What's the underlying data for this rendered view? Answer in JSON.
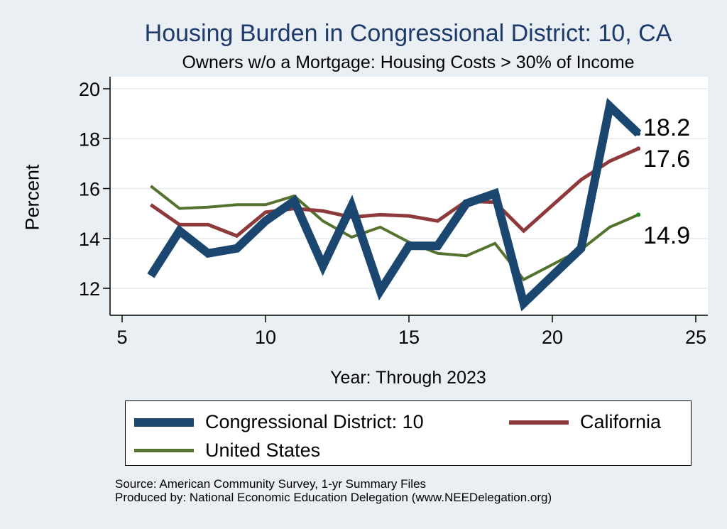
{
  "chart_data": {
    "type": "line",
    "title": "Housing Burden in Congressional District:  10, CA",
    "subtitle": "Owners w/o a Mortgage: Housing Costs > 30% of Income",
    "xlabel": "Year: Through 2023",
    "ylabel": "Percent",
    "xlim": [
      5,
      25
    ],
    "ylim": [
      11,
      20.5
    ],
    "xticks": [
      5,
      10,
      15,
      20,
      25
    ],
    "yticks": [
      12,
      14,
      16,
      18,
      20
    ],
    "grid": true,
    "series": [
      {
        "name": "Congressional District:  10",
        "color": "#1a4670",
        "x": [
          6,
          7,
          8,
          9,
          10,
          11,
          12,
          13,
          14,
          15,
          16,
          17,
          18,
          19,
          21,
          22,
          23
        ],
        "values": [
          12.5,
          14.3,
          13.4,
          13.6,
          14.7,
          15.5,
          12.9,
          15.3,
          11.9,
          13.7,
          13.7,
          15.4,
          15.8,
          11.4,
          13.6,
          19.3,
          18.2
        ],
        "end_label": "18.2"
      },
      {
        "name": "California",
        "color": "#8e3a3d",
        "x": [
          6,
          7,
          8,
          9,
          10,
          11,
          12,
          13,
          14,
          15,
          16,
          17,
          18,
          19,
          21,
          22,
          23
        ],
        "values": [
          15.35,
          14.55,
          14.55,
          14.1,
          15.05,
          15.2,
          15.1,
          14.85,
          14.95,
          14.9,
          14.7,
          15.5,
          15.45,
          14.3,
          16.35,
          17.1,
          17.6
        ],
        "end_label": "17.6"
      },
      {
        "name": "United States",
        "color": "#55732f",
        "x": [
          6,
          7,
          8,
          9,
          10,
          11,
          12,
          13,
          14,
          15,
          16,
          17,
          18,
          19,
          21,
          22,
          23
        ],
        "values": [
          16.1,
          15.2,
          15.25,
          15.35,
          15.35,
          15.7,
          14.7,
          14.05,
          14.45,
          13.85,
          13.4,
          13.3,
          13.8,
          12.35,
          13.55,
          14.45,
          14.95
        ],
        "end_label": "14.9"
      }
    ]
  },
  "legend": {
    "items": [
      {
        "label": "Congressional District:  10"
      },
      {
        "label": "California"
      },
      {
        "label": "United States"
      }
    ]
  },
  "source": {
    "line1": "Source: American Community Survey, 1-yr Summary Files",
    "line2": "Produced by: National Economic Education Delegation (www.NEEDelegation.org)"
  }
}
